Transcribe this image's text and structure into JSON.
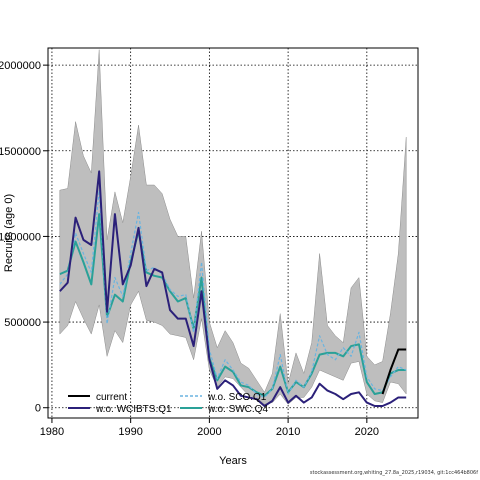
{
  "footer": "stockassessment.org,whiting_27.8a_2025,r19034, git:1cc464b806f",
  "chart_data": {
    "type": "line",
    "xlabel": "Years",
    "ylabel": "Recruits (age 0)",
    "xlim": [
      1979.5,
      2026.5
    ],
    "ylim": [
      -60000,
      2100000
    ],
    "xticks": [
      1980,
      1990,
      2000,
      2010,
      2020
    ],
    "yticks": [
      0,
      500000,
      1000000,
      1500000,
      2000000
    ],
    "ytick_labels": [
      "0",
      "500000",
      "1000000",
      "1500000",
      "2000000"
    ],
    "grid": true,
    "legend_position": "bottom-left",
    "band": {
      "x": [
        1981,
        1982,
        1983,
        1984,
        1985,
        1986,
        1987,
        1988,
        1989,
        1990,
        1991,
        1992,
        1993,
        1994,
        1995,
        1996,
        1997,
        1998,
        1999,
        2000,
        2001,
        2002,
        2003,
        2004,
        2005,
        2006,
        2007,
        2008,
        2009,
        2010,
        2011,
        2012,
        2013,
        2014,
        2015,
        2016,
        2017,
        2018,
        2019,
        2020,
        2021,
        2022,
        2023,
        2024,
        2025
      ],
      "lower": [
        430000,
        480000,
        620000,
        520000,
        430000,
        600000,
        300000,
        450000,
        380000,
        600000,
        680000,
        510000,
        500000,
        480000,
        430000,
        420000,
        410000,
        280000,
        520000,
        220000,
        120000,
        180000,
        170000,
        120000,
        70000,
        60000,
        20000,
        30000,
        80000,
        20000,
        60000,
        60000,
        120000,
        220000,
        200000,
        180000,
        160000,
        260000,
        270000,
        80000,
        40000,
        30000,
        150000,
        140000,
        80000
      ],
      "upper": [
        1270000,
        1280000,
        1670000,
        1470000,
        1370000,
        2090000,
        980000,
        1260000,
        1080000,
        1350000,
        1650000,
        1300000,
        1300000,
        1250000,
        1100000,
        1000000,
        1000000,
        640000,
        1030000,
        500000,
        350000,
        450000,
        380000,
        260000,
        230000,
        160000,
        90000,
        200000,
        550000,
        140000,
        320000,
        200000,
        380000,
        900000,
        480000,
        420000,
        380000,
        700000,
        760000,
        300000,
        250000,
        270000,
        550000,
        900000,
        1580000
      ]
    },
    "series": [
      {
        "name": "current",
        "color": "#000000",
        "x": [
          2022,
          2023,
          2024,
          2025
        ],
        "values": [
          80000,
          220000,
          340000,
          340000
        ]
      },
      {
        "name": "w.o. WCIBTS.Q1",
        "color": "#2b2079",
        "x": [
          1981,
          1982,
          1983,
          1984,
          1985,
          1986,
          1987,
          1988,
          1989,
          1990,
          1991,
          1992,
          1993,
          1994,
          1995,
          1996,
          1997,
          1998,
          1999,
          2000,
          2001,
          2002,
          2003,
          2004,
          2005,
          2006,
          2007,
          2008,
          2009,
          2010,
          2011,
          2012,
          2013,
          2014,
          2015,
          2016,
          2017,
          2018,
          2019,
          2020,
          2021,
          2022,
          2023,
          2024,
          2025
        ],
        "values": [
          680000,
          730000,
          1110000,
          980000,
          950000,
          1380000,
          560000,
          1130000,
          720000,
          830000,
          1050000,
          710000,
          810000,
          790000,
          570000,
          520000,
          520000,
          360000,
          680000,
          280000,
          110000,
          160000,
          130000,
          70000,
          60000,
          50000,
          10000,
          40000,
          120000,
          30000,
          70000,
          30000,
          60000,
          140000,
          100000,
          80000,
          50000,
          80000,
          90000,
          30000,
          10000,
          10000,
          30000,
          60000,
          60000
        ]
      },
      {
        "name": "w.o. SCO.Q1",
        "color": "#6ab4e0",
        "dashed": true,
        "x": [
          1981,
          1982,
          1983,
          1984,
          1985,
          1986,
          1987,
          1988,
          1989,
          1990,
          1991,
          1992,
          1993,
          1994,
          1995,
          1996,
          1997,
          1998,
          1999,
          2000,
          2001,
          2002,
          2003,
          2004,
          2005,
          2006,
          2007,
          2008,
          2009,
          2010,
          2011,
          2012,
          2013,
          2014,
          2015,
          2016,
          2017,
          2018,
          2019,
          2020,
          2021,
          2022,
          2023,
          2024,
          2025
        ],
        "values": [
          720000,
          780000,
          1020000,
          900000,
          790000,
          1270000,
          490000,
          760000,
          650000,
          900000,
          1140000,
          800000,
          820000,
          780000,
          690000,
          650000,
          660000,
          440000,
          850000,
          340000,
          170000,
          280000,
          220000,
          150000,
          130000,
          80000,
          60000,
          110000,
          310000,
          80000,
          160000,
          120000,
          210000,
          420000,
          310000,
          280000,
          350000,
          300000,
          440000,
          180000,
          110000,
          100000,
          180000,
          240000,
          220000
        ]
      },
      {
        "name": "w.o. SWC.Q4",
        "color": "#2aa198",
        "x": [
          1981,
          1982,
          1983,
          1984,
          1985,
          1986,
          1987,
          1988,
          1989,
          1990,
          1991,
          1992,
          1993,
          1994,
          1995,
          1996,
          1997,
          1998,
          1999,
          2000,
          2001,
          2002,
          2003,
          2004,
          2005,
          2006,
          2007,
          2008,
          2009,
          2010,
          2011,
          2012,
          2013,
          2014,
          2015,
          2016,
          2017,
          2018,
          2019,
          2020,
          2021,
          2022,
          2023,
          2024,
          2025
        ],
        "values": [
          780000,
          800000,
          970000,
          850000,
          720000,
          1130000,
          530000,
          660000,
          620000,
          850000,
          1030000,
          790000,
          770000,
          760000,
          680000,
          620000,
          640000,
          460000,
          760000,
          290000,
          160000,
          240000,
          210000,
          130000,
          120000,
          90000,
          70000,
          110000,
          240000,
          90000,
          150000,
          120000,
          200000,
          310000,
          320000,
          320000,
          300000,
          360000,
          370000,
          150000,
          80000,
          90000,
          200000,
          220000,
          220000
        ]
      }
    ]
  }
}
